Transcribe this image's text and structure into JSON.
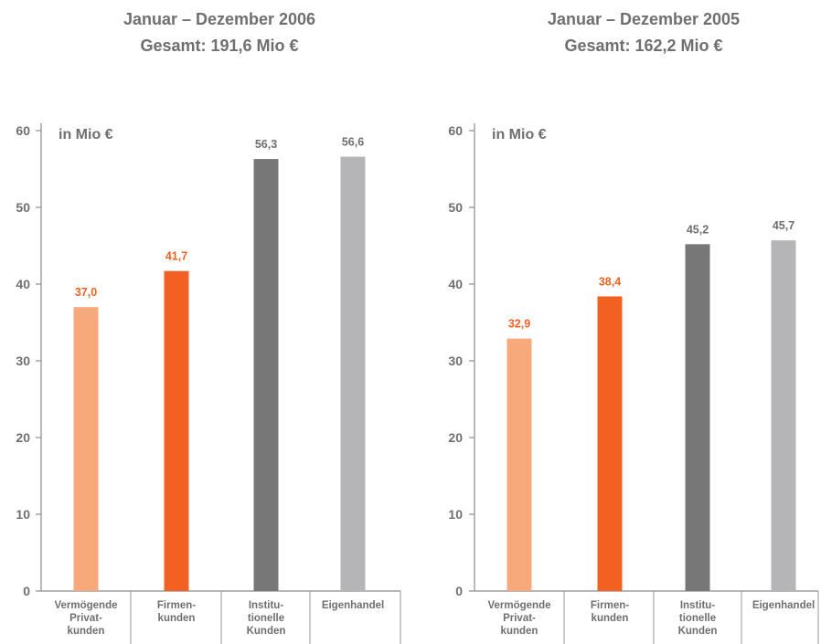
{
  "colors": {
    "privat": "#f8a97c",
    "firmen": "#f26122",
    "institutionelle": "#777778",
    "eigenhandel": "#b5b5b8",
    "highlight_label": "#f26122",
    "gray_label": "#6f6f6f",
    "axis": "#8a8a8a"
  },
  "chart_data": [
    {
      "type": "bar",
      "title": "Januar – Dezember 2006",
      "subtitle": "Gesamt: 191,6 Mio €",
      "ylabel": "in Mio €",
      "ylim": [
        0,
        60
      ],
      "yticks": [
        "0",
        "10",
        "20",
        "30",
        "40",
        "50",
        "60"
      ],
      "categories": [
        [
          "Vermögende",
          "Privat-",
          "kunden"
        ],
        [
          "Firmen-",
          "kunden"
        ],
        [
          "Institu-",
          "tionelle",
          "Kunden"
        ],
        [
          "Eigenhandel"
        ]
      ],
      "values": [
        37.0,
        41.7,
        56.3,
        56.6
      ],
      "value_labels": [
        "37,0",
        "41,7",
        "56,3",
        "56,6"
      ],
      "grid": false
    },
    {
      "type": "bar",
      "title": "Januar – Dezember 2005",
      "subtitle": "Gesamt: 162,2 Mio €",
      "ylabel": "in Mio €",
      "ylim": [
        0,
        60
      ],
      "yticks": [
        "0",
        "10",
        "20",
        "30",
        "40",
        "50",
        "60"
      ],
      "categories": [
        [
          "Vermögende",
          "Privat-",
          "kunden"
        ],
        [
          "Firmen-",
          "kunden"
        ],
        [
          "Institu-",
          "tionelle",
          "Kunden"
        ],
        [
          "Eigenhandel"
        ]
      ],
      "values": [
        32.9,
        38.4,
        45.2,
        45.7
      ],
      "value_labels": [
        "32,9",
        "38,4",
        "45,2",
        "45,7"
      ],
      "grid": false
    }
  ]
}
